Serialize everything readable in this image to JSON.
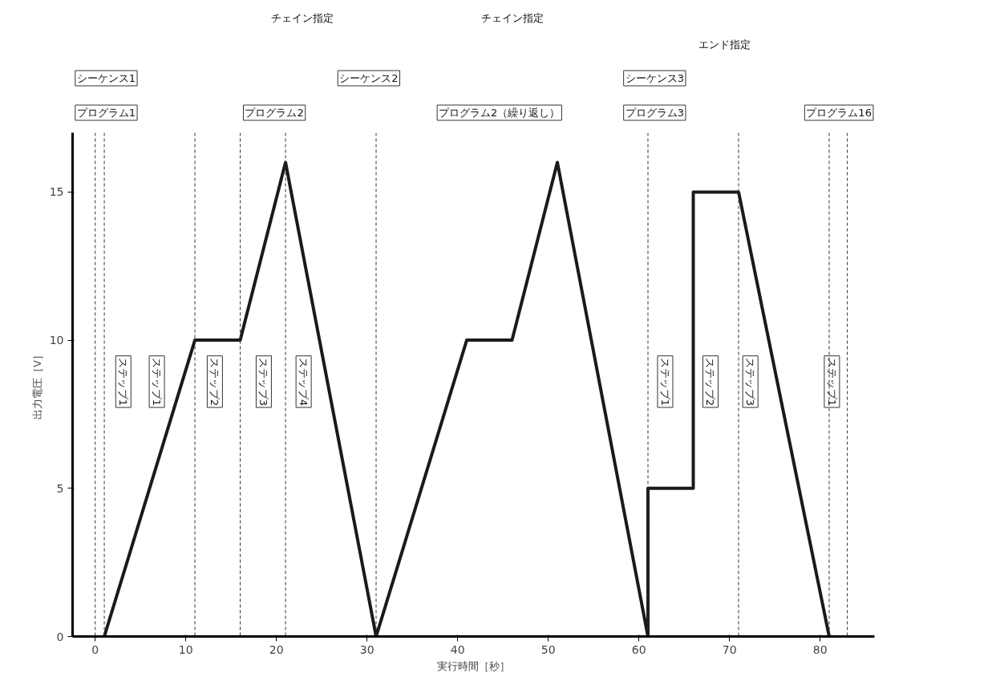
{
  "chart_data": {
    "type": "line",
    "xlabel": "実行時間［秒］",
    "ylabel": "出力電圧［V］",
    "x": [
      1,
      11,
      16,
      21,
      31,
      41,
      46,
      51,
      61,
      61,
      66,
      66,
      71,
      81
    ],
    "series": [
      {
        "color": "#1a1a1a",
        "values": [
          0,
          10,
          10,
          16,
          0,
          10,
          10,
          16,
          0,
          5,
          5,
          15,
          15,
          0
        ]
      }
    ],
    "xlim": [
      -2.5,
      86
    ],
    "xticks": [
      0,
      10,
      20,
      30,
      40,
      50,
      60,
      70,
      80
    ],
    "ylim": [
      0,
      17
    ],
    "yticks": [
      0,
      5,
      10,
      15
    ],
    "grid": false,
    "marker": "none",
    "line_style": "solid",
    "ref_lines": [
      {
        "axis": "x",
        "value": 0,
        "line_style": "dashed"
      },
      {
        "axis": "x",
        "value": 1,
        "line_style": "dashed"
      },
      {
        "axis": "x",
        "value": 11,
        "line_style": "dashed"
      },
      {
        "axis": "x",
        "value": 16,
        "line_style": "dashed"
      },
      {
        "axis": "x",
        "value": 21,
        "line_style": "dashed"
      },
      {
        "axis": "x",
        "value": 31,
        "line_style": "dashed"
      },
      {
        "axis": "x",
        "value": 61,
        "line_style": "dashed"
      },
      {
        "axis": "x",
        "value": 71,
        "line_style": "dashed"
      },
      {
        "axis": "x",
        "value": 81,
        "line_style": "dashed"
      },
      {
        "axis": "x",
        "value": 83,
        "line_style": "dashed"
      }
    ],
    "annotations": [
      "チェイン指定",
      "チェイン指定",
      "エンド指定",
      "シーケンス1",
      "シーケンス2",
      "シーケンス3",
      "プログラム1",
      "プログラム2",
      "プログラム2（繰り返し）",
      "プログラム3",
      "プログラム16",
      "ステップ1",
      "ステップ1",
      "ステップ2",
      "ステップ3",
      "ステップ4",
      "ステップ1",
      "ステップ2",
      "ステップ3",
      "ステップ1"
    ]
  }
}
